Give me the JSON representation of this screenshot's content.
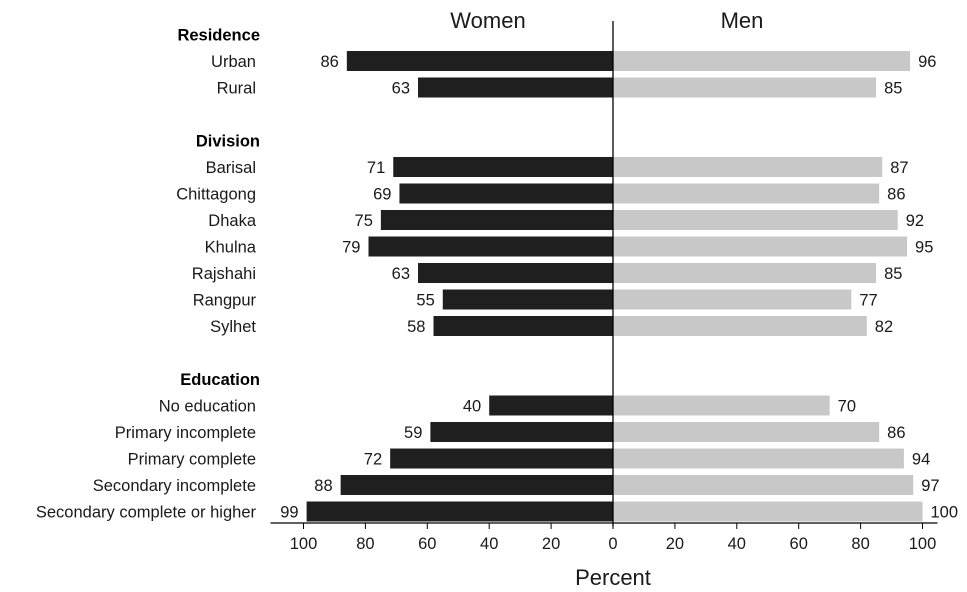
{
  "chart_data": {
    "type": "bar",
    "orientation": "horizontal-diverging",
    "series": [
      {
        "name": "Women",
        "color": "#1f1f1f"
      },
      {
        "name": "Men",
        "color": "#c8c8c9"
      }
    ],
    "groups": [
      {
        "title": "Residence",
        "rows": [
          {
            "label": "Urban",
            "women": 86,
            "men": 96
          },
          {
            "label": "Rural",
            "women": 63,
            "men": 85
          }
        ]
      },
      {
        "title": "Division",
        "rows": [
          {
            "label": "Barisal",
            "women": 71,
            "men": 87
          },
          {
            "label": "Chittagong",
            "women": 69,
            "men": 86
          },
          {
            "label": "Dhaka",
            "women": 75,
            "men": 92
          },
          {
            "label": "Khulna",
            "women": 79,
            "men": 95
          },
          {
            "label": "Rajshahi",
            "women": 63,
            "men": 85
          },
          {
            "label": "Rangpur",
            "women": 55,
            "men": 77
          },
          {
            "label": "Sylhet",
            "women": 58,
            "men": 82
          }
        ]
      },
      {
        "title": "Education",
        "rows": [
          {
            "label": "No education",
            "women": 40,
            "men": 70
          },
          {
            "label": "Primary incomplete",
            "women": 59,
            "men": 86
          },
          {
            "label": "Primary complete",
            "women": 72,
            "men": 94
          },
          {
            "label": "Secondary incomplete",
            "women": 88,
            "men": 97
          },
          {
            "label": "Secondary complete or higher",
            "women": 99,
            "men": 100
          }
        ]
      }
    ],
    "xlabel": "Percent",
    "xlim": [
      0,
      100
    ],
    "xticks_left": [
      "100",
      "80",
      "60",
      "40",
      "20",
      "0"
    ],
    "xticks_right": [
      "0",
      "20",
      "40",
      "60",
      "80",
      "100"
    ],
    "legend": "column headers above bars"
  }
}
